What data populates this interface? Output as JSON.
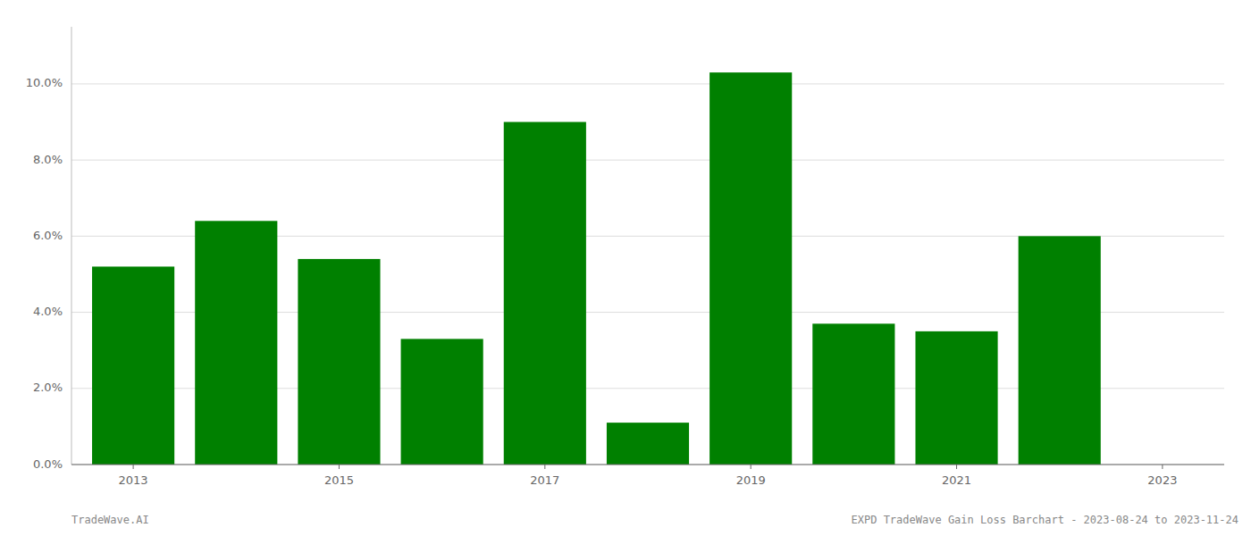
{
  "chart_data": {
    "type": "bar",
    "x": [
      2013,
      2014,
      2015,
      2016,
      2017,
      2018,
      2019,
      2020,
      2021,
      2022
    ],
    "values": [
      0.052,
      0.064,
      0.054,
      0.033,
      0.09,
      0.011,
      0.103,
      0.037,
      0.035,
      0.06
    ],
    "color": "#008000",
    "xlim": [
      2012.4,
      2023.6
    ],
    "xticks": [
      2013,
      2015,
      2017,
      2019,
      2021,
      2023
    ],
    "ylim": [
      0,
      0.115
    ],
    "yticks": [
      {
        "value": 0.0,
        "label": "0.0%"
      },
      {
        "value": 0.02,
        "label": "2.0%"
      },
      {
        "value": 0.04,
        "label": "4.0%"
      },
      {
        "value": 0.06,
        "label": "6.0%"
      },
      {
        "value": 0.08,
        "label": "8.0%"
      },
      {
        "value": 0.1,
        "label": "10.0%"
      }
    ],
    "grid": true,
    "annotations": [
      "TradeWave.AI",
      "EXPD TradeWave Gain Loss Barchart - 2023-08-24 to 2023-11-24"
    ]
  }
}
